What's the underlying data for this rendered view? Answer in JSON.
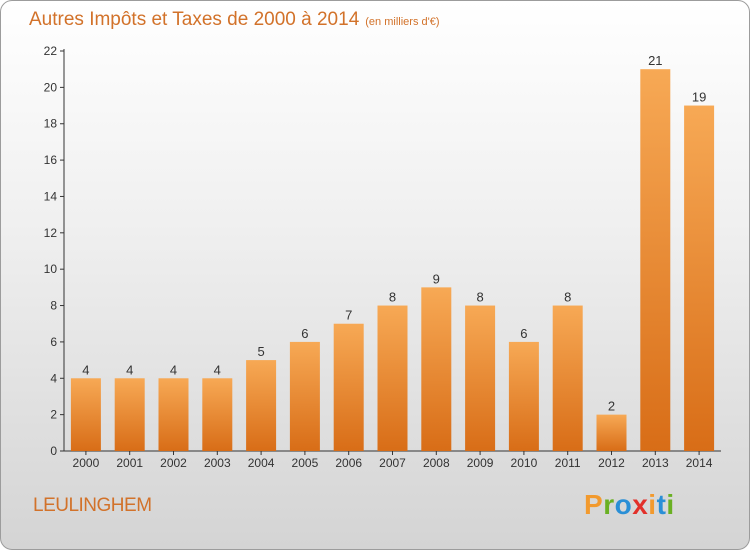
{
  "header": {
    "title": "Autres Impôts et Taxes de 2000 à 2014",
    "unit": "(en milliers d'€)"
  },
  "footer": {
    "city": "LEULINGHEM",
    "logo": {
      "letters": [
        "P",
        "r",
        "o",
        "x",
        "i",
        "t",
        "i"
      ],
      "colors": [
        "#f29a2e",
        "#6ab023",
        "#2a8fd6",
        "#e2302a",
        "#f29a2e",
        "#2a8fd6",
        "#6ab023"
      ]
    }
  },
  "colors": {
    "accent_text": "#d2722a",
    "bar_light": "#f7a955",
    "bar_dark": "#d86d17",
    "axis": "#333333"
  },
  "chart_data": {
    "type": "bar",
    "title": "Autres Impôts et Taxes de 2000 à 2014",
    "subtitle": "(en milliers d'€)",
    "categories": [
      "2000",
      "2001",
      "2002",
      "2003",
      "2004",
      "2005",
      "2006",
      "2007",
      "2008",
      "2009",
      "2010",
      "2011",
      "2012",
      "2013",
      "2014"
    ],
    "values": [
      4,
      4,
      4,
      4,
      5,
      6,
      7,
      8,
      9,
      8,
      6,
      8,
      2,
      21,
      19
    ],
    "ylim": [
      0,
      22
    ],
    "yticks": [
      0,
      2,
      4,
      6,
      8,
      10,
      12,
      14,
      16,
      18,
      20,
      22
    ],
    "grid": false,
    "data_labels": true
  }
}
